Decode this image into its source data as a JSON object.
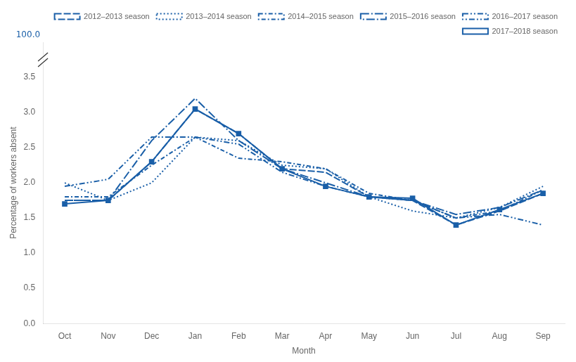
{
  "chart_data": {
    "type": "line",
    "categories": [
      "Oct",
      "Nov",
      "Dec",
      "Jan",
      "Feb",
      "Mar",
      "Apr",
      "May",
      "Jun",
      "Jul",
      "Aug",
      "Sep"
    ],
    "series": [
      {
        "name": "2012–2013 season",
        "color": "#1a5fa8",
        "line_style": "dashed",
        "values": [
          1.75,
          1.75,
          2.3,
          3.05,
          2.7,
          2.2,
          2.15,
          1.8,
          1.75,
          1.4,
          1.6,
          1.85
        ]
      },
      {
        "name": "2013–2014 season",
        "color": "#1a5fa8",
        "line_style": "dotted",
        "values": [
          2.0,
          1.75,
          2.0,
          2.65,
          2.6,
          2.25,
          2.2,
          1.8,
          1.6,
          1.5,
          1.65,
          1.95
        ]
      },
      {
        "name": "2014–2015 season",
        "color": "#1a5fa8",
        "line_style": "dashdot",
        "values": [
          1.8,
          1.8,
          2.25,
          2.65,
          2.35,
          2.3,
          2.2,
          1.85,
          1.75,
          1.5,
          1.6,
          1.9
        ]
      },
      {
        "name": "2015–2016 season",
        "color": "#1a5fa8",
        "line_style": "longdashdot",
        "values": [
          1.75,
          1.75,
          2.6,
          3.2,
          2.6,
          2.2,
          2.0,
          1.8,
          1.75,
          1.55,
          1.65,
          1.9
        ]
      },
      {
        "name": "2016–2017 season",
        "color": "#1a5fa8",
        "line_style": "dashdotdot",
        "values": [
          1.95,
          2.05,
          2.65,
          2.65,
          2.55,
          2.15,
          1.95,
          1.8,
          1.75,
          1.5,
          1.55,
          1.4
        ]
      },
      {
        "name": "2017–2018 season",
        "color": "#1a5fa8",
        "line_style": "solid",
        "marker": "square",
        "values": [
          1.7,
          1.75,
          2.3,
          3.05,
          2.7,
          2.2,
          1.95,
          1.8,
          1.78,
          1.4,
          1.62,
          1.85
        ]
      }
    ],
    "xlabel": "Month",
    "ylabel": "Percentage of workers absent",
    "ylim": [
      0.0,
      4.0
    ],
    "yticks": [
      {
        "value": 0,
        "label": "0.0"
      },
      0.5,
      {
        "value": 1,
        "label": "1.0"
      },
      1.5,
      {
        "value": 2,
        "label": "2.0"
      },
      2.5,
      {
        "value": 3,
        "label": "3.0"
      },
      3.5
    ],
    "grid": false,
    "legend": "upper right",
    "annotations": [
      {
        "text": "100.0"
      }
    ]
  }
}
